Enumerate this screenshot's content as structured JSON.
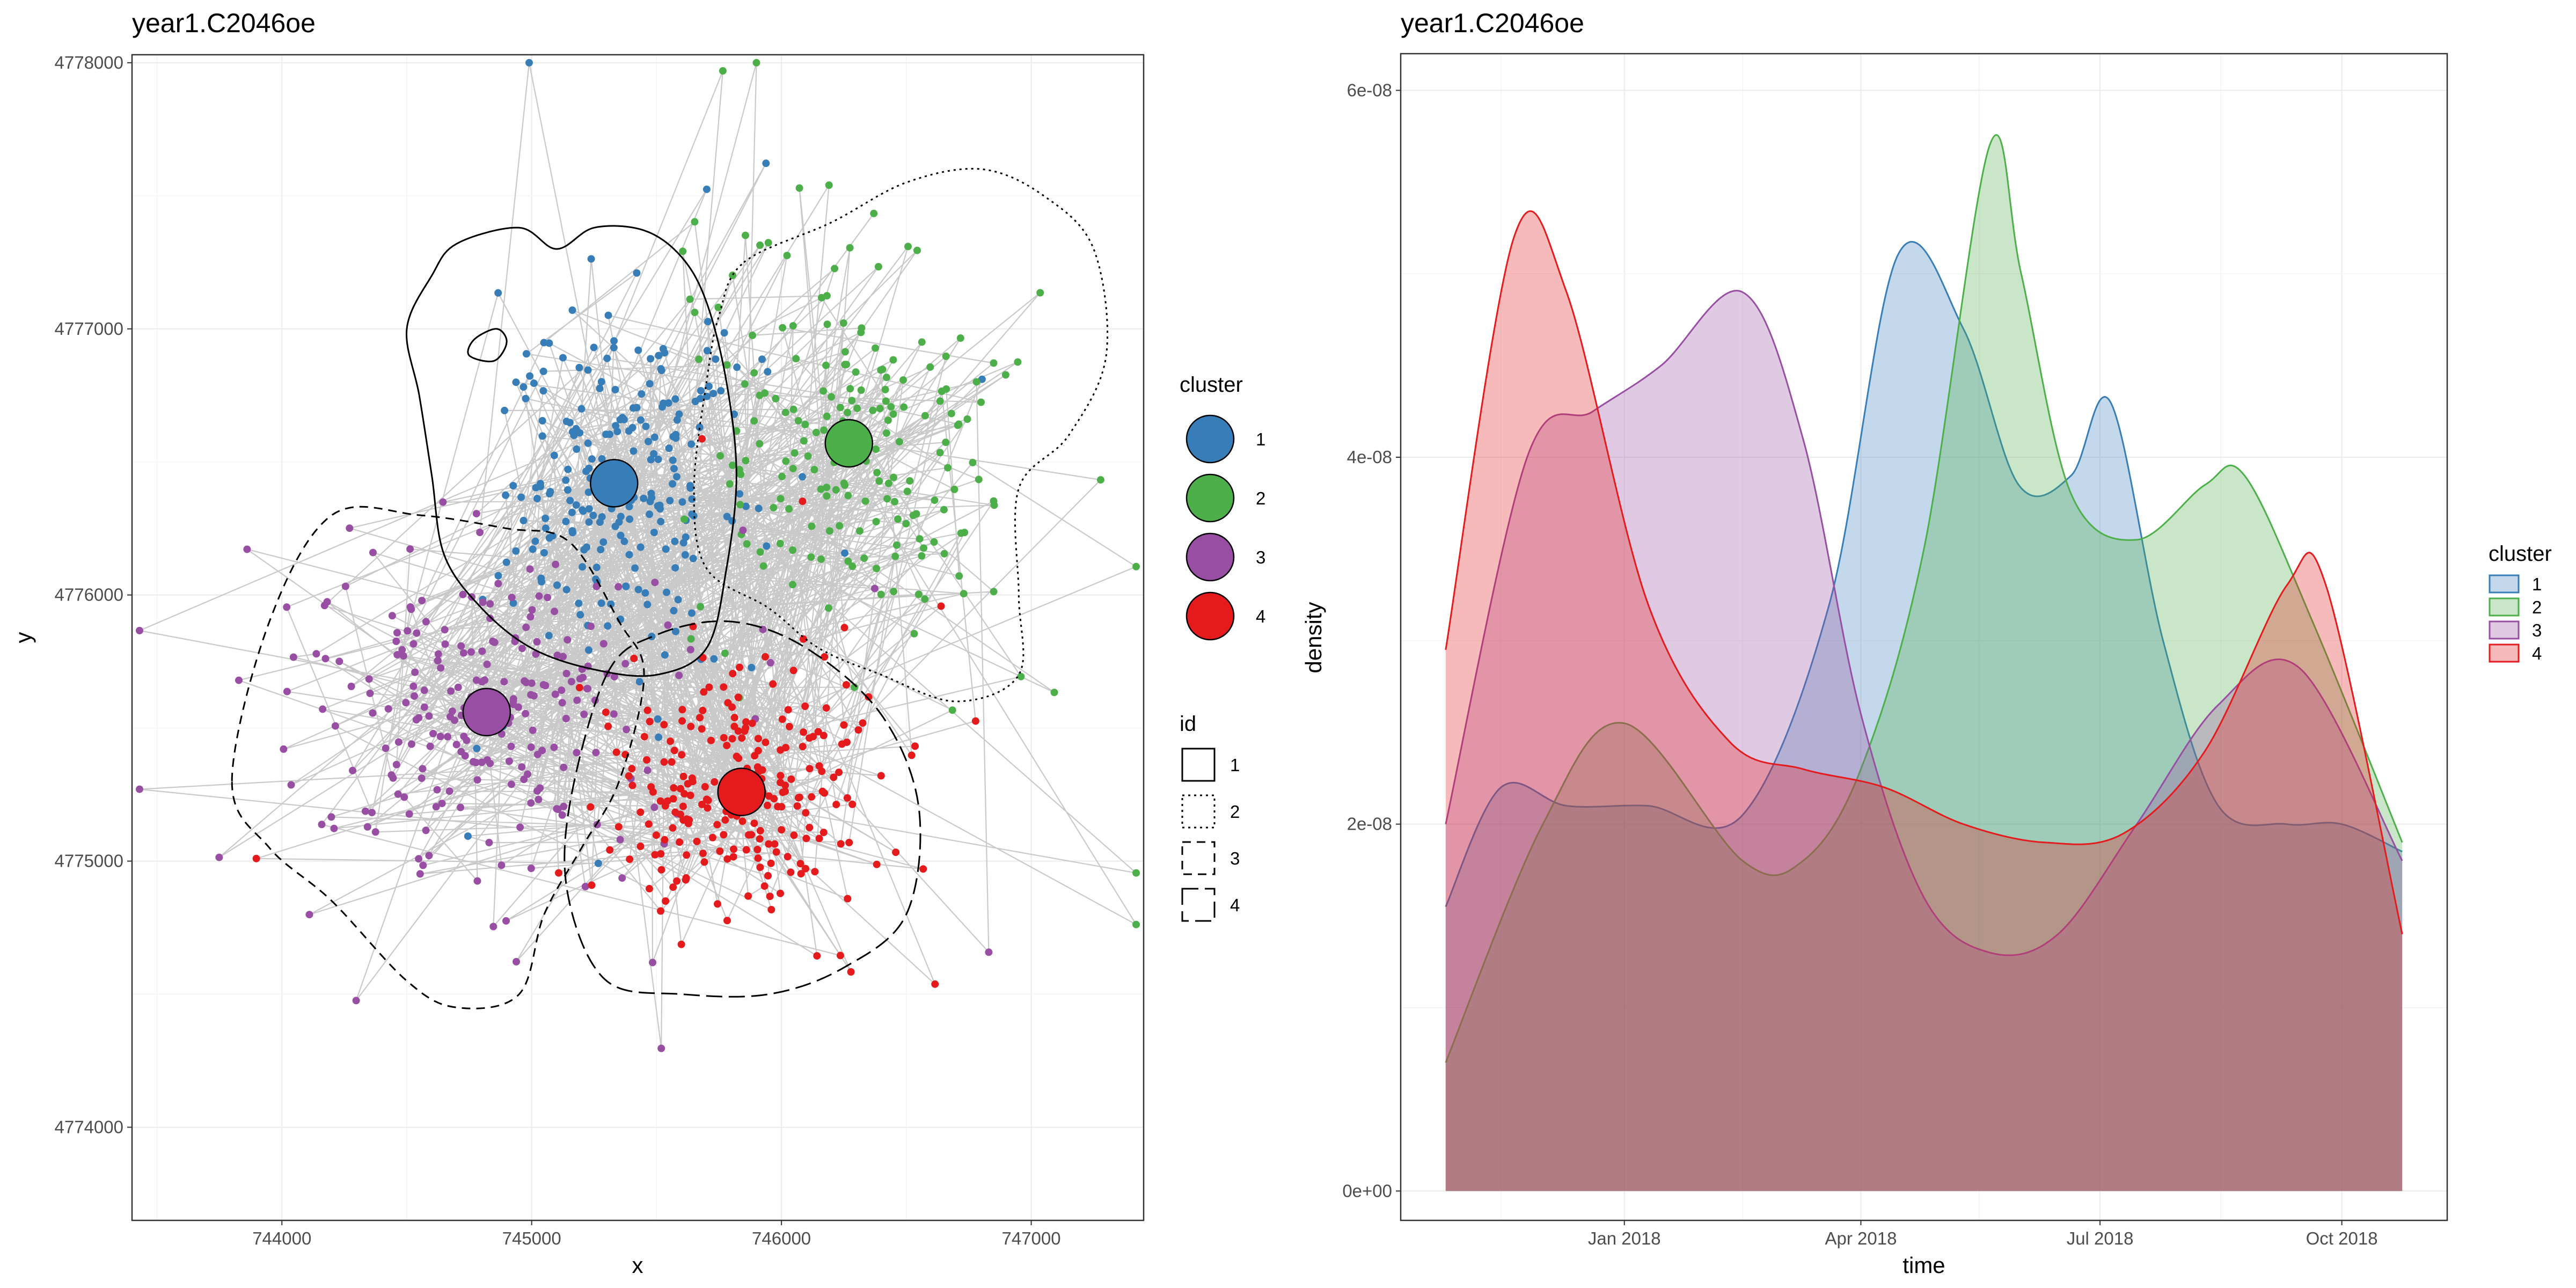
{
  "chart_data": [
    {
      "type": "scatter",
      "title": "year1.C2046oe",
      "xlabel": "x",
      "ylabel": "y",
      "xlim": [
        743400,
        747450
      ],
      "ylim": [
        4773650,
        4778030
      ],
      "x_ticks": [
        744000,
        745000,
        746000,
        747000
      ],
      "y_ticks": [
        4774000,
        4775000,
        4776000,
        4777000,
        4778000
      ],
      "grid": true,
      "legend_cluster_title": "cluster",
      "legend_id_title": "id",
      "legend_placement": "right",
      "clusters": [
        {
          "name": "1",
          "color": "#377EB8",
          "centroid": [
            745330,
            4776420
          ],
          "spread": [
            310,
            420
          ],
          "count": 240
        },
        {
          "name": "2",
          "color": "#4DAF4A",
          "centroid": [
            746270,
            4776570
          ],
          "spread": [
            330,
            400
          ],
          "count": 200
        },
        {
          "name": "3",
          "color": "#984EA3",
          "centroid": [
            744820,
            4775560
          ],
          "spread": [
            420,
            360
          ],
          "count": 240
        },
        {
          "name": "4",
          "color": "#E41A1C",
          "centroid": [
            745840,
            4775260
          ],
          "spread": [
            330,
            300
          ],
          "count": 250
        }
      ],
      "contour_ids": [
        {
          "name": "1",
          "dash": "solid"
        },
        {
          "name": "2",
          "dash": "dotted"
        },
        {
          "name": "3",
          "dash": "dashed"
        },
        {
          "name": "4",
          "dash": "longdash"
        }
      ],
      "contours": [
        {
          "id": "1",
          "points": [
            [
              744700,
              4777320
            ],
            [
              744950,
              4777380
            ],
            [
              745100,
              4777300
            ],
            [
              745250,
              4777380
            ],
            [
              745450,
              4777370
            ],
            [
              745600,
              4777270
            ],
            [
              745700,
              4777100
            ],
            [
              745780,
              4776800
            ],
            [
              745820,
              4776450
            ],
            [
              745780,
              4776100
            ],
            [
              745700,
              4775800
            ],
            [
              745500,
              4775700
            ],
            [
              745250,
              4775720
            ],
            [
              745000,
              4775800
            ],
            [
              744800,
              4775950
            ],
            [
              744650,
              4776150
            ],
            [
              744600,
              4776450
            ],
            [
              744550,
              4776750
            ],
            [
              744500,
              4777000
            ],
            [
              744600,
              4777200
            ]
          ]
        },
        {
          "id": "1",
          "points": [
            [
              744770,
              4776960
            ],
            [
              744860,
              4777000
            ],
            [
              744900,
              4776950
            ],
            [
              744850,
              4776880
            ],
            [
              744750,
              4776900
            ]
          ]
        },
        {
          "id": "2",
          "points": [
            [
              745850,
              4777250
            ],
            [
              746200,
              4777400
            ],
            [
              746500,
              4777550
            ],
            [
              746800,
              4777600
            ],
            [
              747050,
              4777500
            ],
            [
              747250,
              4777300
            ],
            [
              747300,
              4776900
            ],
            [
              747150,
              4776600
            ],
            [
              746950,
              4776400
            ],
            [
              746950,
              4776000
            ],
            [
              746950,
              4775700
            ],
            [
              746700,
              4775600
            ],
            [
              746400,
              4775700
            ],
            [
              746150,
              4775800
            ],
            [
              745950,
              4775950
            ],
            [
              745700,
              4776100
            ],
            [
              745650,
              4776400
            ],
            [
              745700,
              4776800
            ],
            [
              745750,
              4777050
            ]
          ]
        },
        {
          "id": "3",
          "points": [
            [
              743800,
              4775300
            ],
            [
              743950,
              4775900
            ],
            [
              744200,
              4776300
            ],
            [
              744550,
              4776300
            ],
            [
              744900,
              4776250
            ],
            [
              745150,
              4776200
            ],
            [
              745350,
              4775900
            ],
            [
              745450,
              4775700
            ],
            [
              745350,
              4775300
            ],
            [
              745200,
              4775050
            ],
            [
              745050,
              4774800
            ],
            [
              744950,
              4774500
            ],
            [
              744700,
              4774450
            ],
            [
              744500,
              4774550
            ],
            [
              744200,
              4774850
            ],
            [
              743950,
              4775050
            ]
          ]
        },
        {
          "id": "4",
          "points": [
            [
              745300,
              4775700
            ],
            [
              745500,
              4775850
            ],
            [
              745800,
              4775900
            ],
            [
              746100,
              4775800
            ],
            [
              746400,
              4775550
            ],
            [
              746550,
              4775200
            ],
            [
              746500,
              4774800
            ],
            [
              746250,
              4774600
            ],
            [
              745950,
              4774500
            ],
            [
              745600,
              4774500
            ],
            [
              745300,
              4774550
            ],
            [
              745150,
              4774850
            ],
            [
              745150,
              4775200
            ]
          ]
        }
      ]
    },
    {
      "type": "area",
      "title": "year1.C2046oe",
      "xlabel": "time",
      "ylabel": "density",
      "x_range_dates": [
        "2017-10-25",
        "2018-10-24"
      ],
      "y_range": [
        -1.6e-09,
        6.2e-08
      ],
      "x_ticks": [
        {
          "date": "2018-01-01",
          "label": "Jan 2018"
        },
        {
          "date": "2018-04-01",
          "label": "Apr 2018"
        },
        {
          "date": "2018-07-01",
          "label": "Jul 2018"
        },
        {
          "date": "2018-10-01",
          "label": "Oct 2018"
        }
      ],
      "y_ticks": [
        {
          "value": 0,
          "label": "0e+00"
        },
        {
          "value": 2e-08,
          "label": "2e-08"
        },
        {
          "value": 4e-08,
          "label": "4e-08"
        },
        {
          "value": 6e-08,
          "label": "6e-08"
        }
      ],
      "grid": true,
      "legend_title": "cluster",
      "legend_placement": "right",
      "series": [
        {
          "name": "1",
          "color": "#377EB8",
          "x": [
            "2017-10-25",
            "2017-11-15",
            "2017-12-10",
            "2018-01-10",
            "2018-02-15",
            "2018-03-20",
            "2018-04-15",
            "2018-05-10",
            "2018-05-31",
            "2018-06-20",
            "2018-07-05",
            "2018-07-25",
            "2018-08-15",
            "2018-09-10",
            "2018-10-01",
            "2018-10-24"
          ],
          "values": [
            1.55e-08,
            2.2e-08,
            2.1e-08,
            2.1e-08,
            2.05e-08,
            3.2e-08,
            5.1e-08,
            4.7e-08,
            3.85e-08,
            3.9e-08,
            4.3e-08,
            3e-08,
            2.1e-08,
            2e-08,
            2e-08,
            1.85e-08
          ]
        },
        {
          "name": "2",
          "color": "#4DAF4A",
          "x": [
            "2017-10-25",
            "2017-12-01",
            "2018-01-01",
            "2018-02-15",
            "2018-03-10",
            "2018-04-01",
            "2018-04-25",
            "2018-05-20",
            "2018-06-01",
            "2018-06-20",
            "2018-07-15",
            "2018-08-10",
            "2018-08-25",
            "2018-09-20",
            "2018-10-24"
          ],
          "values": [
            7e-09,
            2e-08,
            2.55e-08,
            1.8e-08,
            1.8e-08,
            2.3e-08,
            3.5e-08,
            5.7e-08,
            5e-08,
            3.8e-08,
            3.55e-08,
            3.85e-08,
            3.9e-08,
            3.1e-08,
            1.9e-08
          ]
        },
        {
          "name": "3",
          "color": "#984EA3",
          "x": [
            "2017-10-25",
            "2017-11-25",
            "2017-12-20",
            "2018-01-15",
            "2018-02-15",
            "2018-03-10",
            "2018-04-01",
            "2018-04-25",
            "2018-05-20",
            "2018-06-15",
            "2018-07-15",
            "2018-08-15",
            "2018-09-15",
            "2018-10-24"
          ],
          "values": [
            2e-08,
            4e-08,
            4.25e-08,
            4.5e-08,
            4.9e-08,
            4.1e-08,
            2.6e-08,
            1.6e-08,
            1.3e-08,
            1.4e-08,
            2e-08,
            2.65e-08,
            2.85e-08,
            1.8e-08
          ]
        },
        {
          "name": "4",
          "color": "#E41A1C",
          "x": [
            "2017-10-25",
            "2017-11-20",
            "2017-12-10",
            "2018-01-10",
            "2018-02-10",
            "2018-03-10",
            "2018-04-10",
            "2018-05-10",
            "2018-06-10",
            "2018-07-10",
            "2018-08-10",
            "2018-09-10",
            "2018-09-25",
            "2018-10-24"
          ],
          "values": [
            2.95e-08,
            5.2e-08,
            4.9e-08,
            3.2e-08,
            2.45e-08,
            2.3e-08,
            2.2e-08,
            2e-08,
            1.9e-08,
            1.95e-08,
            2.4e-08,
            3.3e-08,
            3.3e-08,
            1.4e-08
          ]
        }
      ]
    }
  ]
}
